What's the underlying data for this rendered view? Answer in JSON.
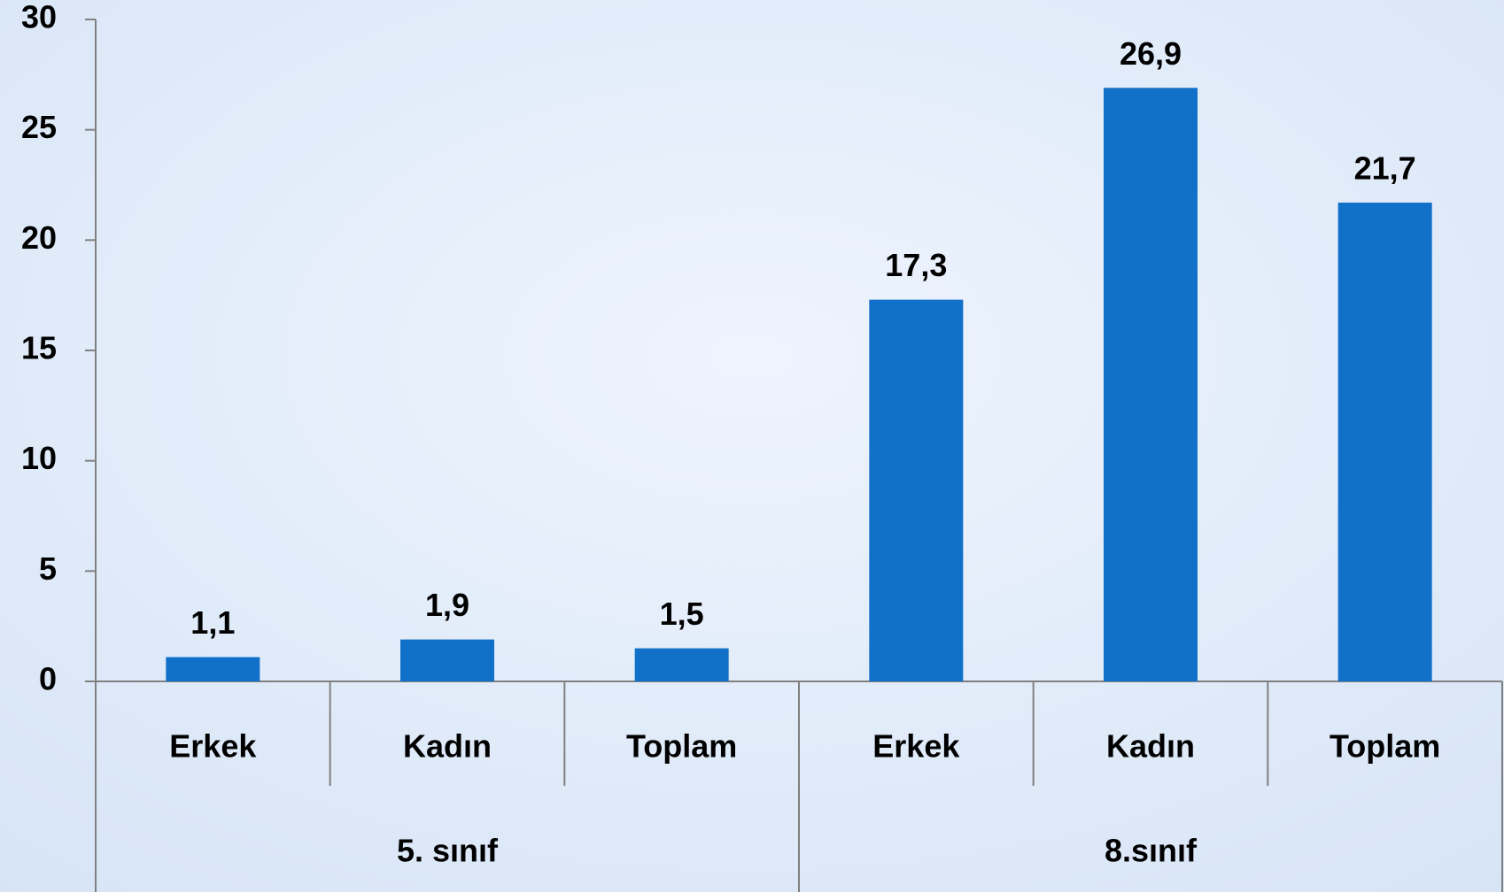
{
  "chart_data": {
    "type": "bar",
    "categories": [
      "Erkek",
      "Kadın",
      "Toplam",
      "Erkek",
      "Kadın",
      "Toplam"
    ],
    "groups": [
      "5. sınıf",
      "8.sınıf"
    ],
    "values": [
      1.1,
      1.9,
      1.5,
      17.3,
      26.9,
      21.7
    ],
    "value_labels": [
      "1,1",
      "1,9",
      "1,5",
      "17,3",
      "26,9",
      "21,7"
    ],
    "color": "#1170c8",
    "ylim": [
      0,
      30
    ],
    "yticks": [
      0,
      5,
      10,
      15,
      20,
      25,
      30
    ],
    "grid": false
  }
}
